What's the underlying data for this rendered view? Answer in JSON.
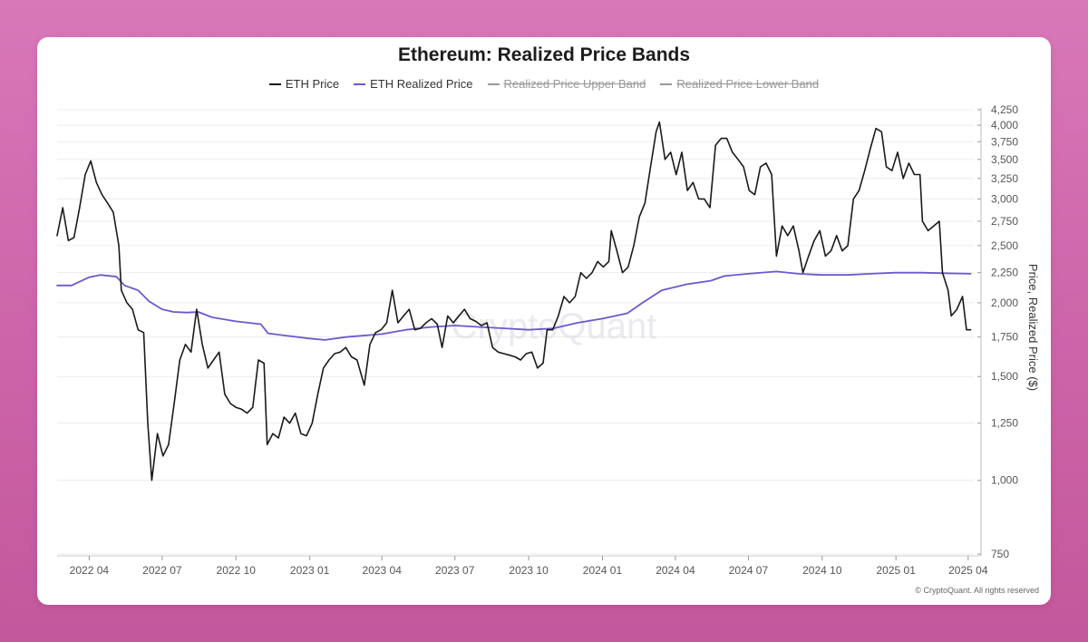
{
  "card": {
    "title": "Ethereum: Realized Price Bands",
    "watermark": "CryptoQuant",
    "copyright": "© CryptoQuant. All rights reserved"
  },
  "legend": [
    {
      "label": "ETH Price",
      "color": "#1a1a1a",
      "hidden": false
    },
    {
      "label": "ETH Realized Price",
      "color": "#6a5acd",
      "hidden": false
    },
    {
      "label": "Realized Price Upper Band",
      "color": "#999999",
      "hidden": true
    },
    {
      "label": "Realized Price Lower Band",
      "color": "#999999",
      "hidden": true
    }
  ],
  "chart_data": {
    "type": "line",
    "title": "Ethereum: Realized Price Bands",
    "xlabel": "",
    "ylabel": "Price, Realized Price ($)",
    "y_scale": "log",
    "ylim": [
      750,
      4250
    ],
    "xlim": [
      "2022-02-20",
      "2025-04-08"
    ],
    "grid": {
      "horizontal": true,
      "vertical": false
    },
    "legend_position": "top",
    "x_ticks": [
      {
        "date": "2022-04-01",
        "label": "2022 04"
      },
      {
        "date": "2022-07-01",
        "label": "2022 07"
      },
      {
        "date": "2022-10-01",
        "label": "2022 10"
      },
      {
        "date": "2023-01-01",
        "label": "2023 01"
      },
      {
        "date": "2023-04-01",
        "label": "2023 04"
      },
      {
        "date": "2023-07-01",
        "label": "2023 07"
      },
      {
        "date": "2023-10-01",
        "label": "2023 10"
      },
      {
        "date": "2024-01-01",
        "label": "2024 01"
      },
      {
        "date": "2024-04-01",
        "label": "2024 04"
      },
      {
        "date": "2024-07-01",
        "label": "2024 07"
      },
      {
        "date": "2024-10-01",
        "label": "2024 10"
      },
      {
        "date": "2025-01-01",
        "label": "2025 01"
      },
      {
        "date": "2025-04-01",
        "label": "2025 04"
      }
    ],
    "y_ticks": [
      {
        "value": 750,
        "label": "750"
      },
      {
        "value": 1000,
        "label": "1,000"
      },
      {
        "value": 1250,
        "label": "1,250"
      },
      {
        "value": 1500,
        "label": "1,500"
      },
      {
        "value": 1750,
        "label": "1,750"
      },
      {
        "value": 2000,
        "label": "2,000"
      },
      {
        "value": 2250,
        "label": "2,250"
      },
      {
        "value": 2500,
        "label": "2,500"
      },
      {
        "value": 2750,
        "label": "2,750"
      },
      {
        "value": 3000,
        "label": "3,000"
      },
      {
        "value": 3250,
        "label": "3,250"
      },
      {
        "value": 3500,
        "label": "3,500"
      },
      {
        "value": 3750,
        "label": "3,750"
      },
      {
        "value": 4000,
        "label": "4,000"
      },
      {
        "value": 4250,
        "label": "4,250"
      }
    ],
    "series": [
      {
        "name": "ETH Price",
        "color": "#1a1a1a",
        "points": [
          [
            "2022-02-20",
            2600
          ],
          [
            "2022-02-27",
            2900
          ],
          [
            "2022-03-06",
            2550
          ],
          [
            "2022-03-13",
            2580
          ],
          [
            "2022-03-20",
            2900
          ],
          [
            "2022-03-27",
            3300
          ],
          [
            "2022-04-03",
            3480
          ],
          [
            "2022-04-10",
            3200
          ],
          [
            "2022-04-17",
            3050
          ],
          [
            "2022-04-24",
            2950
          ],
          [
            "2022-05-01",
            2850
          ],
          [
            "2022-05-08",
            2500
          ],
          [
            "2022-05-11",
            2100
          ],
          [
            "2022-05-18",
            2000
          ],
          [
            "2022-05-25",
            1950
          ],
          [
            "2022-06-01",
            1800
          ],
          [
            "2022-06-08",
            1780
          ],
          [
            "2022-06-13",
            1250
          ],
          [
            "2022-06-18",
            1000
          ],
          [
            "2022-06-25",
            1200
          ],
          [
            "2022-07-02",
            1100
          ],
          [
            "2022-07-09",
            1150
          ],
          [
            "2022-07-16",
            1350
          ],
          [
            "2022-07-23",
            1600
          ],
          [
            "2022-07-30",
            1700
          ],
          [
            "2022-08-06",
            1650
          ],
          [
            "2022-08-13",
            1950
          ],
          [
            "2022-08-20",
            1700
          ],
          [
            "2022-08-27",
            1550
          ],
          [
            "2022-09-03",
            1600
          ],
          [
            "2022-09-10",
            1650
          ],
          [
            "2022-09-17",
            1400
          ],
          [
            "2022-09-24",
            1350
          ],
          [
            "2022-10-01",
            1330
          ],
          [
            "2022-10-08",
            1320
          ],
          [
            "2022-10-15",
            1300
          ],
          [
            "2022-10-22",
            1330
          ],
          [
            "2022-10-29",
            1600
          ],
          [
            "2022-11-05",
            1580
          ],
          [
            "2022-11-09",
            1150
          ],
          [
            "2022-11-16",
            1200
          ],
          [
            "2022-11-23",
            1180
          ],
          [
            "2022-11-30",
            1280
          ],
          [
            "2022-12-07",
            1250
          ],
          [
            "2022-12-14",
            1300
          ],
          [
            "2022-12-21",
            1200
          ],
          [
            "2022-12-28",
            1190
          ],
          [
            "2023-01-04",
            1250
          ],
          [
            "2023-01-11",
            1400
          ],
          [
            "2023-01-18",
            1550
          ],
          [
            "2023-01-25",
            1600
          ],
          [
            "2023-02-01",
            1640
          ],
          [
            "2023-02-08",
            1650
          ],
          [
            "2023-02-15",
            1680
          ],
          [
            "2023-02-22",
            1620
          ],
          [
            "2023-03-01",
            1600
          ],
          [
            "2023-03-10",
            1450
          ],
          [
            "2023-03-17",
            1700
          ],
          [
            "2023-03-24",
            1780
          ],
          [
            "2023-03-31",
            1800
          ],
          [
            "2023-04-07",
            1850
          ],
          [
            "2023-04-14",
            2100
          ],
          [
            "2023-04-21",
            1850
          ],
          [
            "2023-04-28",
            1900
          ],
          [
            "2023-05-05",
            1950
          ],
          [
            "2023-05-12",
            1800
          ],
          [
            "2023-05-19",
            1810
          ],
          [
            "2023-05-26",
            1850
          ],
          [
            "2023-06-02",
            1880
          ],
          [
            "2023-06-09",
            1840
          ],
          [
            "2023-06-15",
            1680
          ],
          [
            "2023-06-22",
            1900
          ],
          [
            "2023-06-29",
            1850
          ],
          [
            "2023-07-06",
            1900
          ],
          [
            "2023-07-13",
            1950
          ],
          [
            "2023-07-20",
            1880
          ],
          [
            "2023-07-27",
            1860
          ],
          [
            "2023-08-03",
            1830
          ],
          [
            "2023-08-10",
            1850
          ],
          [
            "2023-08-17",
            1680
          ],
          [
            "2023-08-24",
            1650
          ],
          [
            "2023-08-31",
            1640
          ],
          [
            "2023-09-07",
            1630
          ],
          [
            "2023-09-14",
            1620
          ],
          [
            "2023-09-21",
            1600
          ],
          [
            "2023-09-28",
            1640
          ],
          [
            "2023-10-05",
            1650
          ],
          [
            "2023-10-12",
            1550
          ],
          [
            "2023-10-19",
            1580
          ],
          [
            "2023-10-24",
            1800
          ],
          [
            "2023-10-31",
            1800
          ],
          [
            "2023-11-07",
            1900
          ],
          [
            "2023-11-14",
            2050
          ],
          [
            "2023-11-21",
            2000
          ],
          [
            "2023-11-28",
            2050
          ],
          [
            "2023-12-05",
            2250
          ],
          [
            "2023-12-12",
            2200
          ],
          [
            "2023-12-19",
            2250
          ],
          [
            "2023-12-26",
            2350
          ],
          [
            "2024-01-02",
            2300
          ],
          [
            "2024-01-09",
            2350
          ],
          [
            "2024-01-12",
            2650
          ],
          [
            "2024-01-19",
            2450
          ],
          [
            "2024-01-26",
            2250
          ],
          [
            "2024-02-02",
            2300
          ],
          [
            "2024-02-09",
            2500
          ],
          [
            "2024-02-16",
            2800
          ],
          [
            "2024-02-23",
            2950
          ],
          [
            "2024-03-01",
            3400
          ],
          [
            "2024-03-08",
            3900
          ],
          [
            "2024-03-12",
            4050
          ],
          [
            "2024-03-19",
            3500
          ],
          [
            "2024-03-26",
            3600
          ],
          [
            "2024-04-02",
            3300
          ],
          [
            "2024-04-09",
            3600
          ],
          [
            "2024-04-16",
            3100
          ],
          [
            "2024-04-23",
            3200
          ],
          [
            "2024-04-30",
            3000
          ],
          [
            "2024-05-07",
            3000
          ],
          [
            "2024-05-14",
            2900
          ],
          [
            "2024-05-21",
            3700
          ],
          [
            "2024-05-28",
            3800
          ],
          [
            "2024-06-04",
            3800
          ],
          [
            "2024-06-11",
            3600
          ],
          [
            "2024-06-18",
            3500
          ],
          [
            "2024-06-25",
            3400
          ],
          [
            "2024-07-02",
            3100
          ],
          [
            "2024-07-09",
            3050
          ],
          [
            "2024-07-16",
            3400
          ],
          [
            "2024-07-23",
            3450
          ],
          [
            "2024-07-30",
            3300
          ],
          [
            "2024-08-05",
            2400
          ],
          [
            "2024-08-12",
            2700
          ],
          [
            "2024-08-19",
            2600
          ],
          [
            "2024-08-26",
            2700
          ],
          [
            "2024-09-02",
            2450
          ],
          [
            "2024-09-07",
            2250
          ],
          [
            "2024-09-14",
            2400
          ],
          [
            "2024-09-21",
            2550
          ],
          [
            "2024-09-28",
            2650
          ],
          [
            "2024-10-05",
            2400
          ],
          [
            "2024-10-12",
            2450
          ],
          [
            "2024-10-19",
            2600
          ],
          [
            "2024-10-26",
            2450
          ],
          [
            "2024-11-02",
            2500
          ],
          [
            "2024-11-09",
            3000
          ],
          [
            "2024-11-16",
            3100
          ],
          [
            "2024-11-23",
            3350
          ],
          [
            "2024-11-30",
            3650
          ],
          [
            "2024-12-07",
            3950
          ],
          [
            "2024-12-14",
            3900
          ],
          [
            "2024-12-20",
            3400
          ],
          [
            "2024-12-27",
            3350
          ],
          [
            "2025-01-03",
            3600
          ],
          [
            "2025-01-10",
            3250
          ],
          [
            "2025-01-17",
            3450
          ],
          [
            "2025-01-24",
            3300
          ],
          [
            "2025-01-31",
            3300
          ],
          [
            "2025-02-03",
            2750
          ],
          [
            "2025-02-10",
            2650
          ],
          [
            "2025-02-17",
            2700
          ],
          [
            "2025-02-24",
            2750
          ],
          [
            "2025-02-28",
            2250
          ],
          [
            "2025-03-07",
            2100
          ],
          [
            "2025-03-11",
            1900
          ],
          [
            "2025-03-18",
            1950
          ],
          [
            "2025-03-25",
            2050
          ],
          [
            "2025-03-30",
            1800
          ],
          [
            "2025-04-04",
            1800
          ]
        ]
      },
      {
        "name": "ETH Realized Price",
        "color": "#6a5acd",
        "points": [
          [
            "2022-02-20",
            2140
          ],
          [
            "2022-03-10",
            2140
          ],
          [
            "2022-04-01",
            2210
          ],
          [
            "2022-04-15",
            2230
          ],
          [
            "2022-05-05",
            2215
          ],
          [
            "2022-05-15",
            2140
          ],
          [
            "2022-06-01",
            2100
          ],
          [
            "2022-06-15",
            2010
          ],
          [
            "2022-07-01",
            1950
          ],
          [
            "2022-07-15",
            1930
          ],
          [
            "2022-08-01",
            1925
          ],
          [
            "2022-08-15",
            1930
          ],
          [
            "2022-09-01",
            1890
          ],
          [
            "2022-10-01",
            1860
          ],
          [
            "2022-11-01",
            1840
          ],
          [
            "2022-11-10",
            1775
          ],
          [
            "2022-12-01",
            1760
          ],
          [
            "2023-01-01",
            1740
          ],
          [
            "2023-01-20",
            1730
          ],
          [
            "2023-02-15",
            1750
          ],
          [
            "2023-04-01",
            1770
          ],
          [
            "2023-05-01",
            1800
          ],
          [
            "2023-06-01",
            1820
          ],
          [
            "2023-07-01",
            1830
          ],
          [
            "2023-08-01",
            1820
          ],
          [
            "2023-09-01",
            1810
          ],
          [
            "2023-10-01",
            1800
          ],
          [
            "2023-11-01",
            1810
          ],
          [
            "2023-12-01",
            1850
          ],
          [
            "2024-01-01",
            1880
          ],
          [
            "2024-02-01",
            1920
          ],
          [
            "2024-02-20",
            2000
          ],
          [
            "2024-03-15",
            2100
          ],
          [
            "2024-04-15",
            2150
          ],
          [
            "2024-05-15",
            2180
          ],
          [
            "2024-06-01",
            2220
          ],
          [
            "2024-07-01",
            2240
          ],
          [
            "2024-08-05",
            2260
          ],
          [
            "2024-09-01",
            2240
          ],
          [
            "2024-10-01",
            2230
          ],
          [
            "2024-11-01",
            2230
          ],
          [
            "2024-12-01",
            2240
          ],
          [
            "2025-01-01",
            2250
          ],
          [
            "2025-02-01",
            2250
          ],
          [
            "2025-03-01",
            2245
          ],
          [
            "2025-04-04",
            2240
          ]
        ]
      }
    ]
  }
}
